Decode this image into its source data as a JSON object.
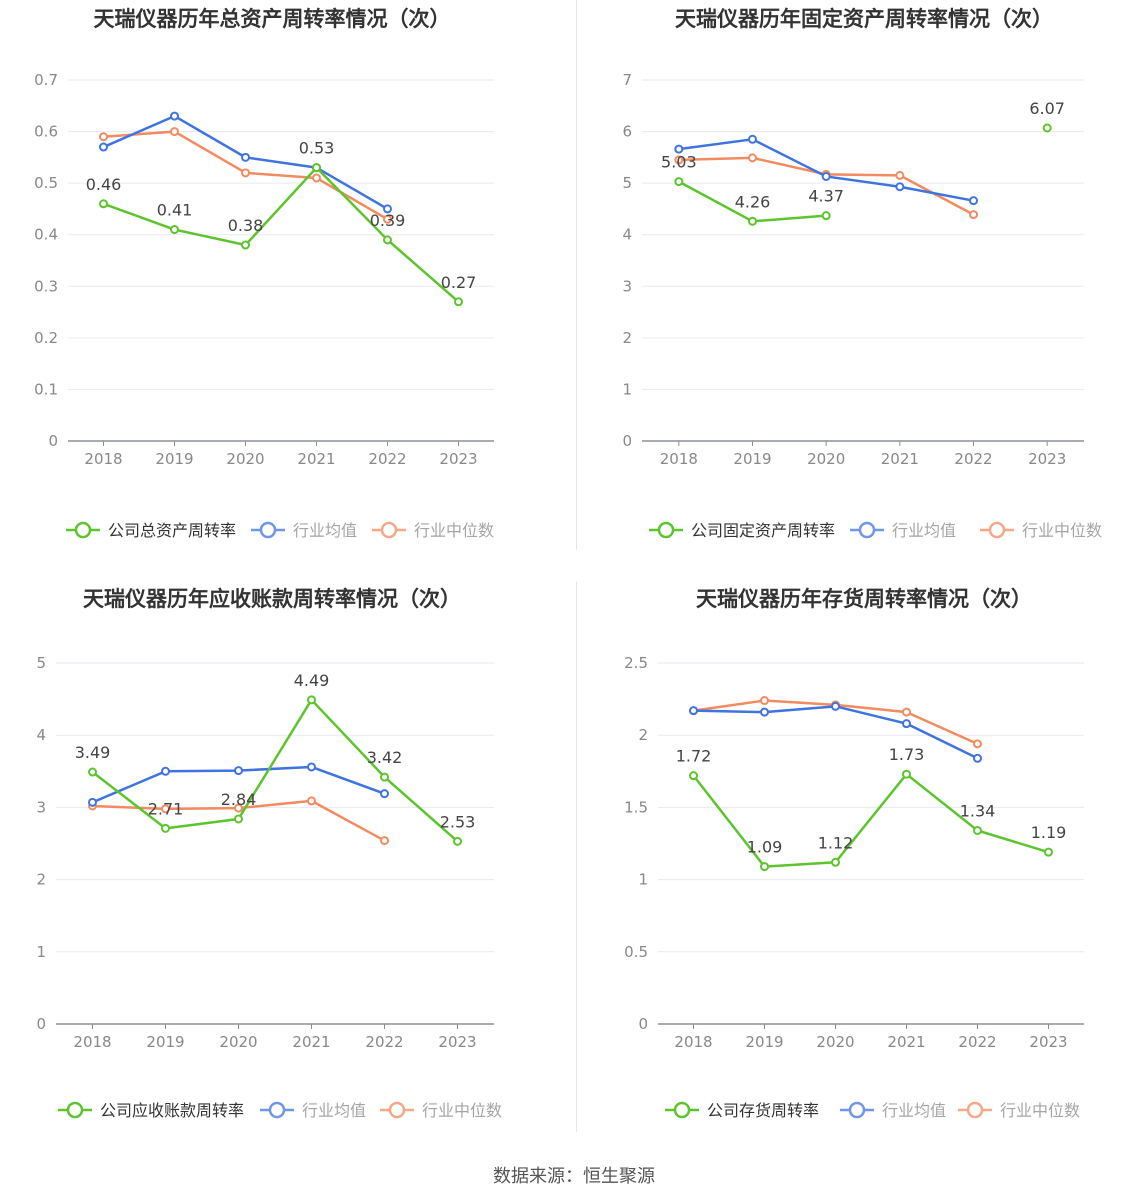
{
  "source_label": "数据来源：恒生聚源",
  "colors": {
    "company": "#5cc42d",
    "industry_avg": "#3f73e0",
    "industry_median": "#f28b60",
    "grid": "#e8eaf0",
    "axis": "#8c8f99",
    "tick_text": "#888888",
    "title_text": "#333333",
    "label_text": "#444444"
  },
  "chart_data": [
    {
      "type": "line",
      "title": "天瑞仪器历年总资产周转率情况（次）",
      "categories": [
        "2018",
        "2019",
        "2020",
        "2021",
        "2022",
        "2023"
      ],
      "ylim": [
        0,
        0.7
      ],
      "yticks": [
        "0",
        "0.1",
        "0.2",
        "0.3",
        "0.4",
        "0.5",
        "0.6",
        "0.7"
      ],
      "grid": true,
      "legend_position": "bottom",
      "series": [
        {
          "name": "公司总资产周转率",
          "key": "company",
          "values": [
            0.46,
            0.41,
            0.38,
            0.53,
            0.39,
            0.27
          ],
          "labels": [
            "0.46",
            "0.41",
            "0.38",
            "0.53",
            "0.39",
            "0.27"
          ]
        },
        {
          "name": "行业均值",
          "key": "industry_avg",
          "values": [
            0.57,
            0.63,
            0.55,
            0.53,
            0.45,
            null
          ]
        },
        {
          "name": "行业中位数",
          "key": "industry_median",
          "values": [
            0.59,
            0.6,
            0.52,
            0.51,
            0.43,
            null
          ]
        }
      ]
    },
    {
      "type": "line",
      "title": "天瑞仪器历年固定资产周转率情况（次）",
      "categories": [
        "2018",
        "2019",
        "2020",
        "2021",
        "2022",
        "2023"
      ],
      "ylim": [
        0,
        7
      ],
      "yticks": [
        "0",
        "1",
        "2",
        "3",
        "4",
        "5",
        "6",
        "7"
      ],
      "grid": true,
      "legend_position": "bottom",
      "series": [
        {
          "name": "公司固定资产周转率",
          "key": "company",
          "values": [
            5.03,
            4.26,
            4.37,
            null,
            null,
            6.07
          ],
          "labels": [
            "5.03",
            "4.26",
            "4.37",
            null,
            null,
            "6.07"
          ]
        },
        {
          "name": "行业均值",
          "key": "industry_avg",
          "values": [
            5.66,
            5.85,
            5.13,
            4.93,
            4.66,
            null
          ]
        },
        {
          "name": "行业中位数",
          "key": "industry_median",
          "values": [
            5.45,
            5.49,
            5.17,
            5.15,
            4.39,
            null
          ]
        }
      ]
    },
    {
      "type": "line",
      "title": "天瑞仪器历年应收账款周转率情况（次）",
      "categories": [
        "2018",
        "2019",
        "2020",
        "2021",
        "2022",
        "2023"
      ],
      "ylim": [
        0,
        5
      ],
      "yticks": [
        "0",
        "1",
        "2",
        "3",
        "4",
        "5"
      ],
      "grid": true,
      "legend_position": "bottom",
      "series": [
        {
          "name": "公司应收账款周转率",
          "key": "company",
          "values": [
            3.49,
            2.71,
            2.84,
            4.49,
            3.42,
            2.53
          ],
          "labels": [
            "3.49",
            "2.71",
            "2.84",
            "4.49",
            "3.42",
            "2.53"
          ]
        },
        {
          "name": "行业均值",
          "key": "industry_avg",
          "values": [
            3.07,
            3.5,
            3.51,
            3.56,
            3.19,
            null
          ]
        },
        {
          "name": "行业中位数",
          "key": "industry_median",
          "values": [
            3.02,
            2.98,
            2.99,
            3.09,
            2.54,
            null
          ]
        }
      ]
    },
    {
      "type": "line",
      "title": "天瑞仪器历年存货周转率情况（次）",
      "categories": [
        "2018",
        "2019",
        "2020",
        "2021",
        "2022",
        "2023"
      ],
      "ylim": [
        0,
        2.5
      ],
      "yticks": [
        "0",
        "0.5",
        "1",
        "1.5",
        "2",
        "2.5"
      ],
      "grid": true,
      "legend_position": "bottom",
      "series": [
        {
          "name": "公司存货周转率",
          "key": "company",
          "values": [
            1.72,
            1.09,
            1.12,
            1.73,
            1.34,
            1.19
          ],
          "labels": [
            "1.72",
            "1.09",
            "1.12",
            "1.73",
            "1.34",
            "1.19"
          ]
        },
        {
          "name": "行业均值",
          "key": "industry_avg",
          "values": [
            2.17,
            2.16,
            2.2,
            2.08,
            1.84,
            null
          ]
        },
        {
          "name": "行业中位数",
          "key": "industry_median",
          "values": [
            2.17,
            2.24,
            2.21,
            2.16,
            1.94,
            null
          ]
        }
      ]
    }
  ]
}
